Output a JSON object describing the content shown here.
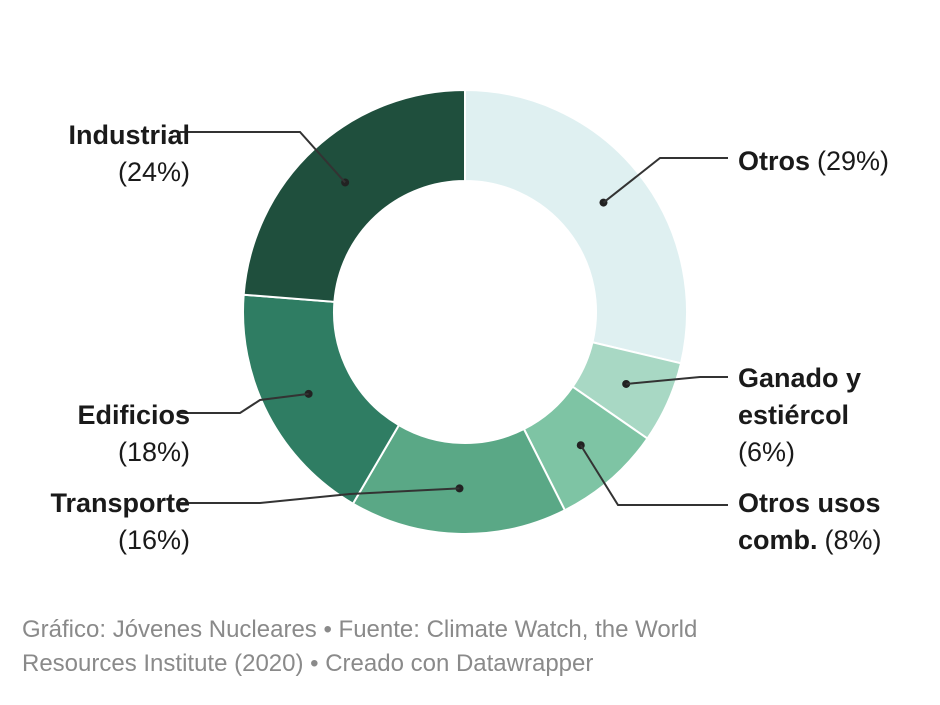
{
  "chart_data": {
    "type": "pie",
    "subtype": "donut",
    "slices": [
      {
        "name": "Otros",
        "pct_label": "(29%)",
        "value": 29,
        "color": "#dff0f1"
      },
      {
        "name": "Ganado y estiércol",
        "name_lines": [
          "Ganado y",
          "estiércol"
        ],
        "pct_label": "(6%)",
        "value": 6,
        "color": "#a8d8c4"
      },
      {
        "name": "Otros usos comb.",
        "name_lines": [
          "Otros usos",
          "comb."
        ],
        "pct_label": "(8%)",
        "value": 8,
        "color": "#7ec4a4"
      },
      {
        "name": "Transporte",
        "pct_label": "(16%)",
        "value": 16,
        "color": "#5aa886"
      },
      {
        "name": "Edificios",
        "pct_label": "(18%)",
        "value": 18,
        "color": "#2f7d63"
      },
      {
        "name": "Industrial",
        "pct_label": "(24%)",
        "value": 24,
        "color": "#1f4f3d"
      }
    ]
  },
  "footer": {
    "line1": "Gráfico: Jóvenes Nucleares • Fuente: Climate Watch, the World",
    "line2": "Resources Institute (2020) • Creado con Datawrapper"
  }
}
